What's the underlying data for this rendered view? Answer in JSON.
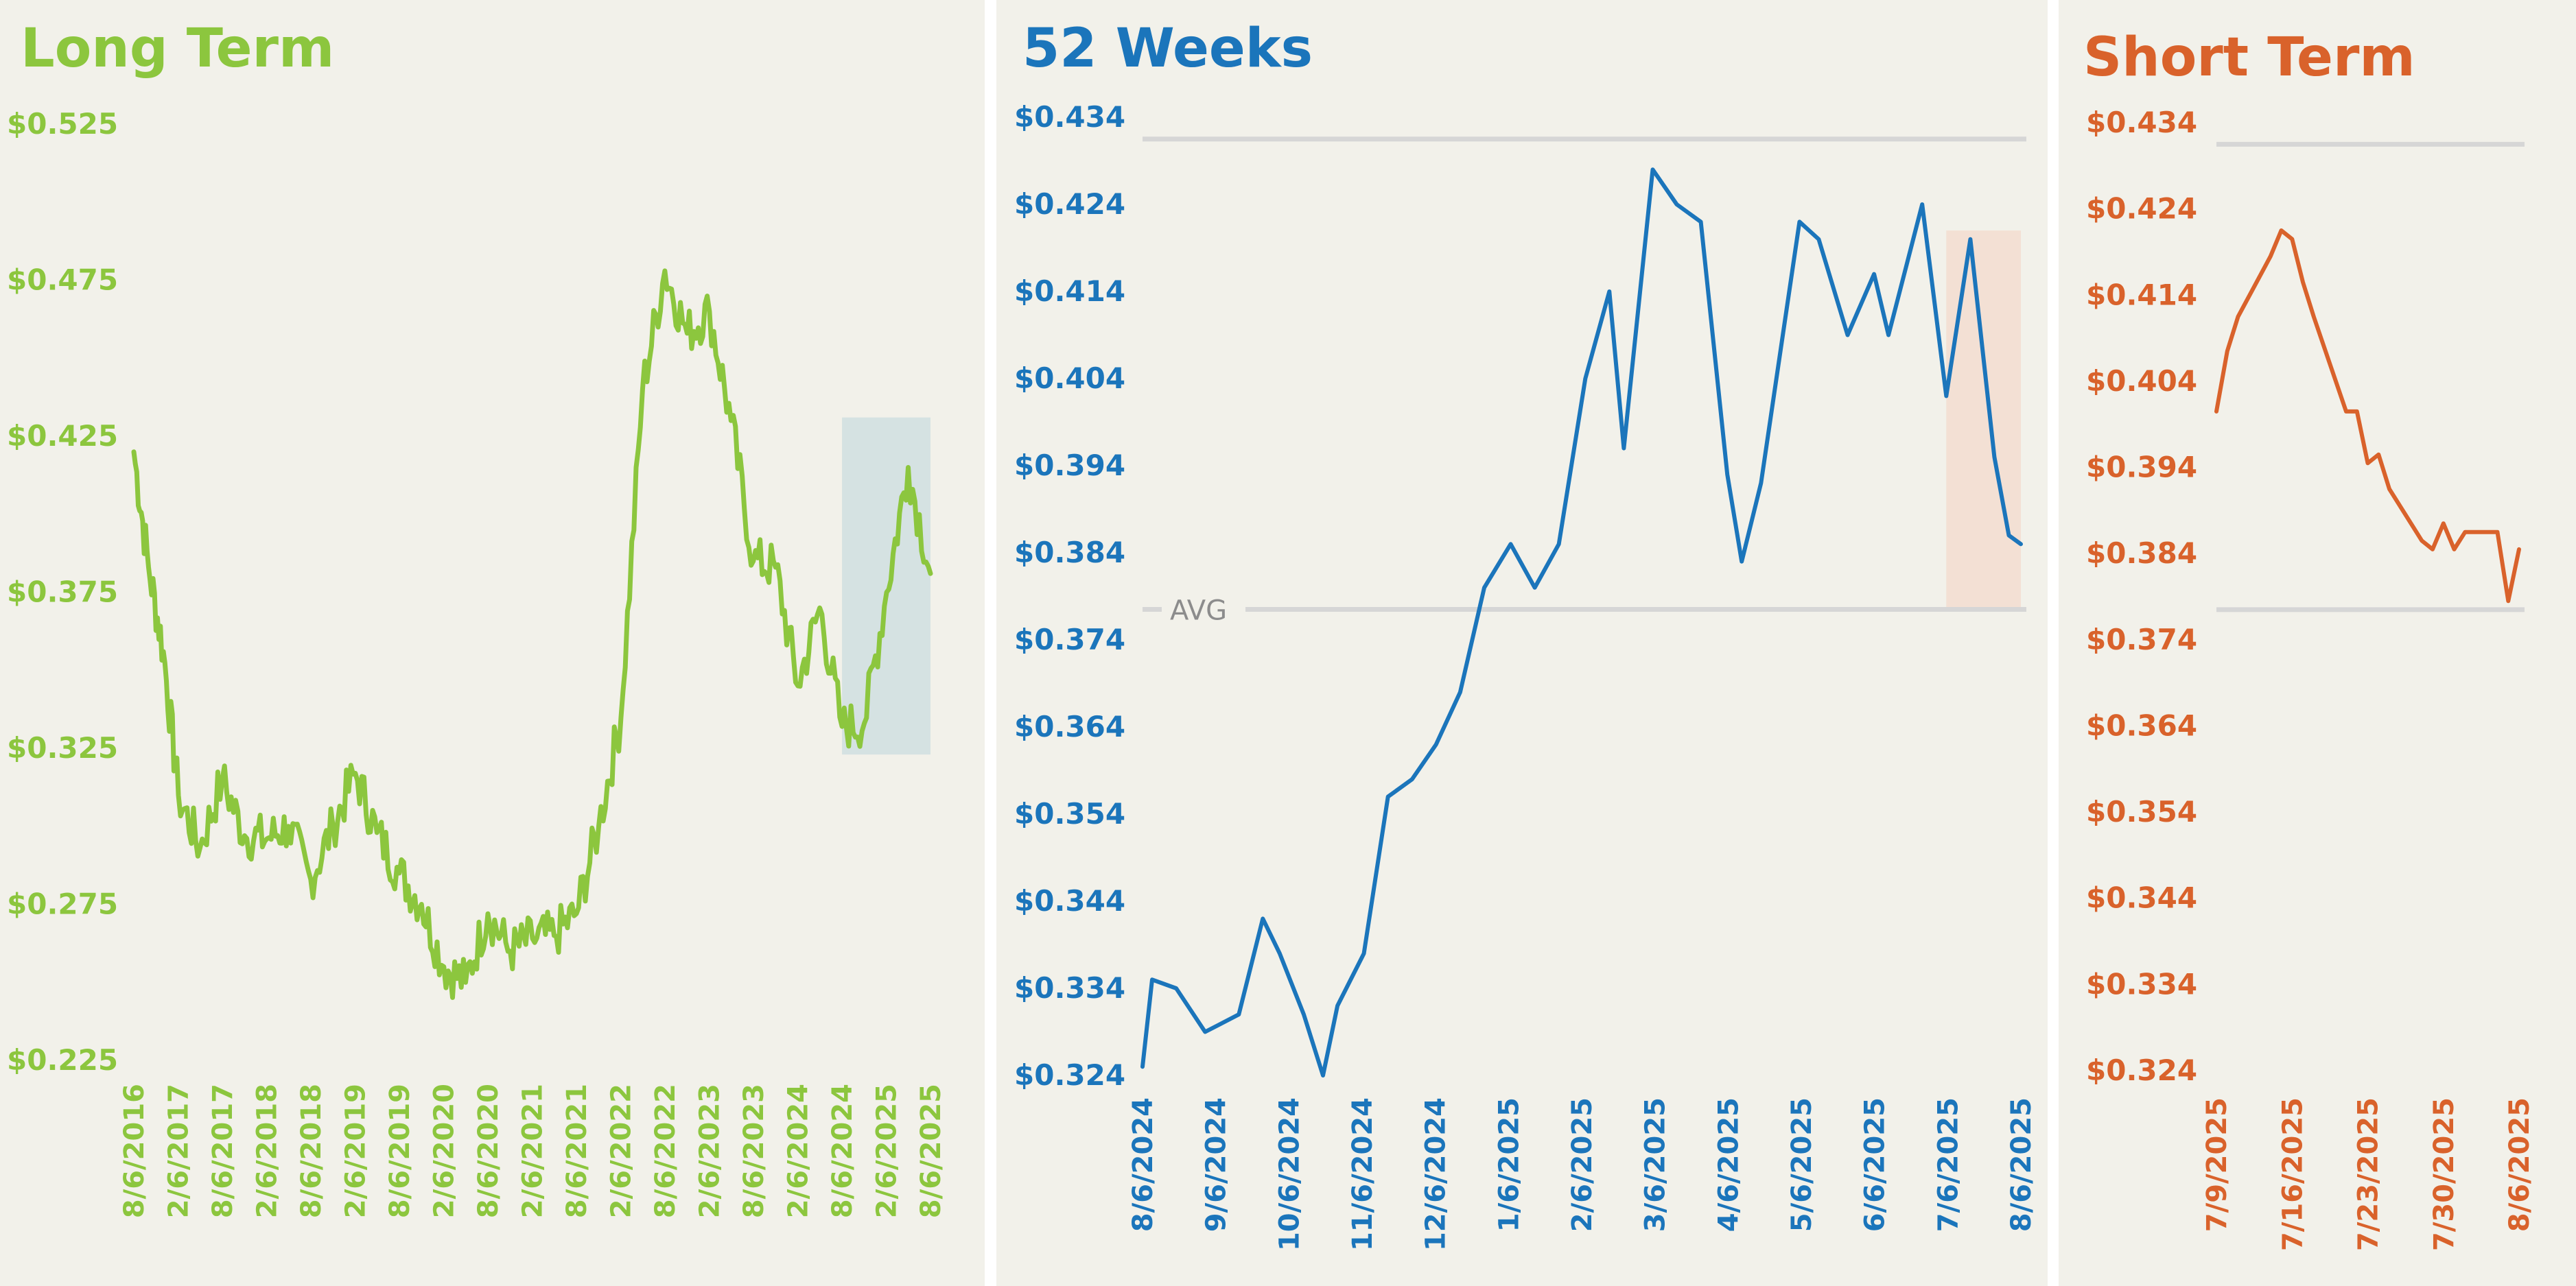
{
  "colors": {
    "panel_bg": "#f2f1ea",
    "gap": "#ffffff",
    "long_term": "#8cc63e",
    "weeks_52": "#1b75bb",
    "short_term": "#d9622b",
    "ref_line": "#d6d6d6",
    "long_term_highlight": "#d5e2e2",
    "weeks_52_highlight": "#f3e0d4"
  },
  "chart_data": [
    {
      "type": "line",
      "title": "Long Term",
      "ylim": [
        0.225,
        0.525
      ],
      "yticks": [
        "$0.525",
        "$0.475",
        "$0.425",
        "$0.375",
        "$0.325",
        "$0.275",
        "$0.225"
      ],
      "xticks": [
        "8/6/2016",
        "2/6/2017",
        "8/6/2017",
        "2/6/2018",
        "8/6/2018",
        "2/6/2019",
        "8/6/2019",
        "2/6/2020",
        "8/6/2020",
        "2/6/2021",
        "8/6/2021",
        "2/6/2022",
        "8/6/2022",
        "2/6/2023",
        "8/6/2023",
        "2/6/2024",
        "8/6/2024",
        "2/6/2025",
        "8/6/2025"
      ],
      "highlight": {
        "x_start": "8/6/2024",
        "x_end": "8/6/2025",
        "y_low": 0.323,
        "y_high": 0.431
      },
      "series": [
        {
          "x": [
            "8/6/2016",
            "10/6/2016",
            "12/6/2016",
            "2/6/2017",
            "5/6/2017",
            "8/6/2017",
            "11/6/2017",
            "2/6/2018",
            "5/6/2018",
            "8/6/2018",
            "11/6/2018",
            "2/6/2019",
            "5/6/2019",
            "8/6/2019",
            "11/6/2019",
            "2/6/2020",
            "5/6/2020",
            "8/6/2020",
            "11/6/2020",
            "2/6/2021",
            "5/6/2021",
            "8/6/2021",
            "11/6/2021",
            "2/6/2022",
            "5/6/2022",
            "8/6/2022",
            "11/6/2022",
            "2/6/2023",
            "5/6/2023",
            "8/6/2023",
            "11/6/2023",
            "2/6/2024",
            "5/6/2024",
            "8/6/2024",
            "11/6/2024",
            "2/6/2025",
            "5/6/2025",
            "8/6/2025"
          ],
          "values": [
            0.42,
            0.383,
            0.356,
            0.31,
            0.293,
            0.315,
            0.297,
            0.296,
            0.3,
            0.283,
            0.3,
            0.317,
            0.298,
            0.285,
            0.275,
            0.255,
            0.25,
            0.272,
            0.26,
            0.264,
            0.265,
            0.272,
            0.3,
            0.335,
            0.44,
            0.478,
            0.458,
            0.465,
            0.43,
            0.385,
            0.383,
            0.345,
            0.37,
            0.332,
            0.333,
            0.375,
            0.415,
            0.381
          ]
        }
      ]
    },
    {
      "type": "line",
      "title": "52 Weeks",
      "ylim": [
        0.324,
        0.434
      ],
      "yticks": [
        "$0.434",
        "$0.424",
        "$0.414",
        "$0.404",
        "$0.394",
        "$0.384",
        "$0.374",
        "$0.364",
        "$0.354",
        "$0.344",
        "$0.334",
        "$0.324"
      ],
      "xticks": [
        "8/6/2024",
        "9/6/2024",
        "10/6/2024",
        "11/6/2024",
        "12/6/2024",
        "1/6/2025",
        "2/6/2025",
        "3/6/2025",
        "4/6/2025",
        "5/6/2025",
        "6/6/2025",
        "7/6/2025",
        "8/6/2025"
      ],
      "reference_lines": [
        {
          "value": 0.4315
        },
        {
          "value": 0.3775,
          "label": "AVG"
        }
      ],
      "highlight": {
        "x_start": "7/6/2025",
        "x_end": "8/6/2025",
        "y_low": 0.3775,
        "y_high": 0.421
      },
      "series": [
        {
          "x": [
            "8/6/2024",
            "8/10/2024",
            "8/20/2024",
            "9/1/2024",
            "9/15/2024",
            "9/25/2024",
            "10/2/2024",
            "10/12/2024",
            "10/20/2024",
            "10/26/2024",
            "11/6/2024",
            "11/16/2024",
            "11/26/2024",
            "12/6/2024",
            "12/16/2024",
            "12/26/2024",
            "1/6/2025",
            "1/16/2025",
            "1/26/2025",
            "2/6/2025",
            "2/16/2025",
            "2/22/2025",
            "3/6/2025",
            "3/16/2025",
            "3/26/2025",
            "4/6/2025",
            "4/12/2025",
            "4/20/2025",
            "5/6/2025",
            "5/14/2025",
            "5/26/2025",
            "6/6/2025",
            "6/12/2025",
            "6/26/2025",
            "7/6/2025",
            "7/16/2025",
            "7/26/2025",
            "8/1/2025",
            "8/6/2025"
          ],
          "values": [
            0.325,
            0.335,
            0.334,
            0.329,
            0.331,
            0.342,
            0.338,
            0.331,
            0.324,
            0.332,
            0.338,
            0.356,
            0.358,
            0.362,
            0.368,
            0.38,
            0.385,
            0.38,
            0.385,
            0.404,
            0.414,
            0.396,
            0.428,
            0.424,
            0.422,
            0.393,
            0.383,
            0.392,
            0.422,
            0.42,
            0.409,
            0.416,
            0.409,
            0.424,
            0.402,
            0.42,
            0.395,
            0.386,
            0.385
          ]
        }
      ]
    },
    {
      "type": "line",
      "title": "Short Term",
      "ylim": [
        0.324,
        0.434
      ],
      "yticks": [
        "$0.434",
        "$0.424",
        "$0.414",
        "$0.404",
        "$0.394",
        "$0.384",
        "$0.374",
        "$0.364",
        "$0.354",
        "$0.344",
        "$0.334",
        "$0.324"
      ],
      "xticks": [
        "7/9/2025",
        "7/16/2025",
        "7/23/2025",
        "7/30/2025",
        "8/6/2025"
      ],
      "reference_lines": [
        {
          "value": 0.4315
        },
        {
          "value": 0.3775
        }
      ],
      "series": [
        {
          "x": [
            "7/9/2025",
            "7/10/2025",
            "7/11/2025",
            "7/14/2025",
            "7/15/2025",
            "7/16/2025",
            "7/17/2025",
            "7/18/2025",
            "7/21/2025",
            "7/22/2025",
            "7/23/2025",
            "7/24/2025",
            "7/25/2025",
            "7/28/2025",
            "7/29/2025",
            "7/30/2025",
            "7/31/2025",
            "8/1/2025",
            "8/4/2025",
            "8/5/2025",
            "8/6/2025"
          ],
          "values": [
            0.4005,
            0.4075,
            0.4115,
            0.4185,
            0.4215,
            0.4205,
            0.4155,
            0.4115,
            0.4005,
            0.4005,
            0.3945,
            0.3955,
            0.3915,
            0.3855,
            0.3845,
            0.3875,
            0.3845,
            0.3865,
            0.3865,
            0.3785,
            0.3845
          ]
        }
      ]
    }
  ]
}
